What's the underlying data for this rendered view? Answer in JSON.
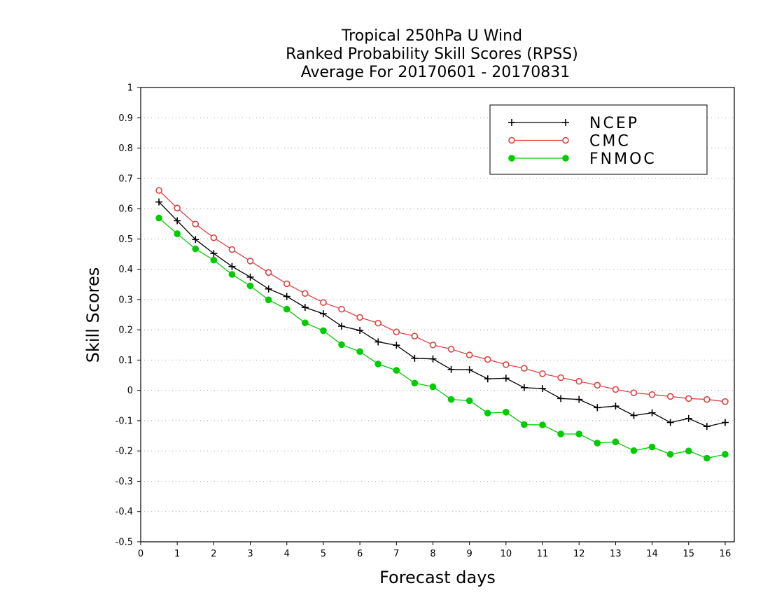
{
  "chart_data": {
    "type": "line",
    "title": [
      "Tropical 250hPa U Wind",
      "Ranked Probability Skill Scores (RPSS)",
      "Average For 20170601 - 20170831"
    ],
    "xlabel": "Forecast days",
    "ylabel": "Skill Scores",
    "xlim": [
      0,
      16.25
    ],
    "ylim": [
      -0.5,
      1
    ],
    "xticks": [
      0,
      1,
      2,
      3,
      4,
      5,
      6,
      7,
      8,
      9,
      10,
      11,
      12,
      13,
      14,
      15,
      16
    ],
    "xtick_labels": [
      "0",
      "1",
      "2",
      "3",
      "4",
      "5",
      "6",
      "7",
      "8",
      "9",
      "10",
      "11",
      "12",
      "13",
      "14",
      "15",
      "16"
    ],
    "yticks": [
      -0.5,
      -0.4,
      -0.3,
      -0.2,
      -0.1,
      0,
      0.1,
      0.2,
      0.3,
      0.4,
      0.5,
      0.6,
      0.7,
      0.8,
      0.9,
      1
    ],
    "ytick_labels": [
      "-0.5",
      "-0.4",
      "-0.3",
      "-0.2",
      "-0.1",
      "0",
      "0.1",
      "0.2",
      "0.3",
      "0.4",
      "0.5",
      "0.6",
      "0.7",
      "0.8",
      "0.9",
      "1"
    ],
    "grid": true,
    "legend_position": "top-right",
    "x": [
      0.5,
      1,
      1.5,
      2,
      2.5,
      3,
      3.5,
      4,
      4.5,
      5,
      5.5,
      6,
      6.5,
      7,
      7.5,
      8,
      8.5,
      9,
      9.5,
      10,
      10.5,
      11,
      11.5,
      12,
      12.5,
      13,
      13.5,
      14,
      14.5,
      15,
      15.5,
      16
    ],
    "series": [
      {
        "name": "NCEP",
        "color": "#000000",
        "marker": "plus",
        "values": [
          0.622,
          0.56,
          0.498,
          0.452,
          0.409,
          0.374,
          0.335,
          0.31,
          0.274,
          0.253,
          0.212,
          0.198,
          0.16,
          0.149,
          0.106,
          0.104,
          0.069,
          0.068,
          0.038,
          0.04,
          0.009,
          0.006,
          -0.027,
          -0.03,
          -0.057,
          -0.052,
          -0.083,
          -0.074,
          -0.106,
          -0.093,
          -0.119,
          -0.106
        ]
      },
      {
        "name": "CMC",
        "color": "#e04040",
        "marker": "open-circle",
        "values": [
          0.66,
          0.602,
          0.549,
          0.504,
          0.465,
          0.427,
          0.389,
          0.352,
          0.32,
          0.29,
          0.268,
          0.241,
          0.222,
          0.193,
          0.179,
          0.15,
          0.136,
          0.117,
          0.102,
          0.085,
          0.073,
          0.055,
          0.042,
          0.03,
          0.017,
          0.003,
          -0.008,
          -0.014,
          -0.02,
          -0.027,
          -0.03,
          -0.037
        ]
      },
      {
        "name": "FNMOC",
        "color": "#00cc00",
        "marker": "filled-circle",
        "values": [
          0.569,
          0.517,
          0.467,
          0.43,
          0.383,
          0.345,
          0.299,
          0.268,
          0.223,
          0.197,
          0.151,
          0.128,
          0.087,
          0.066,
          0.024,
          0.012,
          -0.03,
          -0.034,
          -0.075,
          -0.072,
          -0.113,
          -0.114,
          -0.144,
          -0.144,
          -0.174,
          -0.17,
          -0.199,
          -0.187,
          -0.211,
          -0.2,
          -0.224,
          -0.211
        ]
      }
    ]
  }
}
